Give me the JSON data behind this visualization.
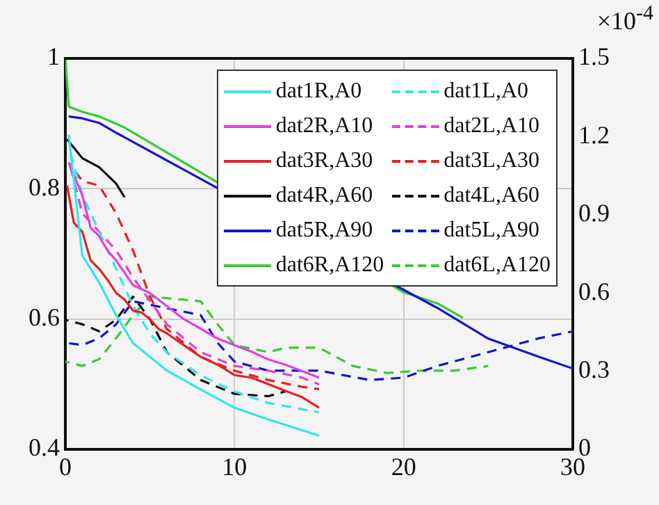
{
  "chart_data": {
    "type": "line",
    "xlim": [
      0,
      30
    ],
    "xticks": [
      0,
      10,
      20,
      30
    ],
    "ylim": [
      0.4,
      1
    ],
    "yticks": [
      0.4,
      0.6,
      0.8,
      1
    ],
    "y2lim": [
      0,
      1.5
    ],
    "y2ticks": [
      0,
      0.3,
      0.6,
      0.9,
      1.2,
      1.5
    ],
    "grid": true,
    "legend": "top right",
    "line_style": "solid",
    "marker": "none",
    "annotations": [
      "×10$^{-4}$"
    ],
    "series": [
      {
        "name": "dat1R,A0",
        "color": "#33e6e6",
        "x": [
          0.2,
          1,
          2,
          3,
          4,
          6,
          8,
          10,
          12,
          15
        ],
        "values": [
          0.883,
          0.698,
          0.656,
          0.606,
          0.563,
          0.521,
          0.492,
          0.464,
          0.446,
          0.421
        ]
      },
      {
        "name": "dat2R,A10",
        "color": "#e040e0",
        "x": [
          0.2,
          1,
          1.5,
          2,
          2.5,
          3,
          4,
          5,
          6,
          7,
          8,
          9,
          10,
          11,
          12,
          13,
          14,
          15
        ],
        "values": [
          0.84,
          0.79,
          0.74,
          0.727,
          0.705,
          0.69,
          0.652,
          0.64,
          0.62,
          0.6,
          0.585,
          0.57,
          0.56,
          0.55,
          0.538,
          0.53,
          0.52,
          0.51
        ]
      },
      {
        "name": "dat3R,A30",
        "color": "#e62020",
        "x": [
          0.1,
          0.5,
          1,
          1.5,
          2,
          2.5,
          3,
          3.5,
          4,
          4.5,
          5,
          5.5,
          6,
          7,
          8,
          9,
          10,
          11,
          12,
          13,
          14,
          15
        ],
        "values": [
          0.805,
          0.748,
          0.734,
          0.69,
          0.677,
          0.66,
          0.64,
          0.63,
          0.613,
          0.61,
          0.6,
          0.585,
          0.578,
          0.56,
          0.542,
          0.53,
          0.514,
          0.51,
          0.5,
          0.49,
          0.48,
          0.464
        ]
      },
      {
        "name": "dat4R,A60",
        "color": "#111111",
        "x": [
          0.1,
          1,
          2,
          3,
          3.5
        ],
        "values": [
          0.876,
          0.847,
          0.833,
          0.808,
          0.787
        ]
      },
      {
        "name": "dat5R,A90",
        "color": "#1515cc",
        "x": [
          0.2,
          1,
          2,
          3,
          3.5,
          19.7,
          22,
          25,
          28,
          30
        ],
        "values": [
          0.911,
          0.908,
          0.901,
          0.886,
          0.879,
          0.649,
          0.617,
          0.57,
          0.542,
          0.524
        ]
      },
      {
        "name": "dat6R,A120",
        "color": "#33cc33",
        "x": [
          0,
          0.2,
          1,
          2,
          3.5,
          20,
          22,
          23.5
        ],
        "values": [
          1.0,
          0.926,
          0.918,
          0.911,
          0.894,
          0.641,
          0.624,
          0.602
        ]
      },
      {
        "name": "dat1L,A0",
        "color": "#33e6e6",
        "line_style": "dashed",
        "axis": "y2",
        "x": [
          0.3,
          1,
          2,
          3,
          4,
          5,
          6,
          8,
          10,
          12,
          15
        ],
        "values": [
          1.137,
          0.977,
          0.835,
          0.693,
          0.551,
          0.444,
          0.373,
          0.284,
          0.222,
          0.178,
          0.142
        ]
      },
      {
        "name": "dat2L,A10",
        "color": "#e040e0",
        "line_style": "dashed",
        "axis": "y2",
        "x": [
          0.3,
          1,
          2,
          3,
          4,
          6,
          8,
          10,
          12,
          14,
          15
        ],
        "values": [
          1.083,
          0.906,
          0.835,
          0.764,
          0.66,
          0.48,
          0.373,
          0.32,
          0.302,
          0.275,
          0.249
        ]
      },
      {
        "name": "dat3L,A30",
        "color": "#e62020",
        "line_style": "dashed",
        "axis": "y2",
        "x": [
          0.2,
          1,
          2,
          3,
          4,
          5,
          6,
          8,
          10,
          12,
          14,
          15
        ],
        "values": [
          1.1,
          1.03,
          1.012,
          0.906,
          0.764,
          0.586,
          0.462,
          0.355,
          0.302,
          0.266,
          0.24,
          0.231
        ]
      },
      {
        "name": "dat4L,A60",
        "color": "#111111",
        "line_style": "dashed",
        "axis": "y2",
        "x": [
          0,
          1,
          2,
          3,
          4,
          5,
          6,
          8,
          10,
          12,
          13
        ],
        "values": [
          0.497,
          0.48,
          0.453,
          0.497,
          0.586,
          0.5,
          0.373,
          0.266,
          0.213,
          0.204,
          0.222
        ]
      },
      {
        "name": "dat5L,A90",
        "color": "#1515cc",
        "line_style": "dashed",
        "axis": "y2",
        "x": [
          0,
          1,
          2,
          3,
          4,
          8,
          9,
          10,
          12,
          15,
          18,
          20,
          22,
          25,
          28,
          30
        ],
        "values": [
          0.409,
          0.4,
          0.426,
          0.48,
          0.568,
          0.515,
          0.409,
          0.337,
          0.302,
          0.302,
          0.266,
          0.275,
          0.32,
          0.373,
          0.426,
          0.453
        ]
      },
      {
        "name": "dat6L,A120",
        "color": "#33cc33",
        "line_style": "dashed",
        "axis": "y2",
        "x": [
          0,
          1,
          2,
          3,
          4,
          5,
          8,
          9,
          10,
          12,
          13,
          15,
          17,
          19,
          21,
          23,
          25
        ],
        "values": [
          0.337,
          0.32,
          0.346,
          0.426,
          0.515,
          0.586,
          0.568,
          0.48,
          0.4,
          0.373,
          0.39,
          0.39,
          0.32,
          0.293,
          0.302,
          0.302,
          0.32
        ]
      }
    ]
  }
}
